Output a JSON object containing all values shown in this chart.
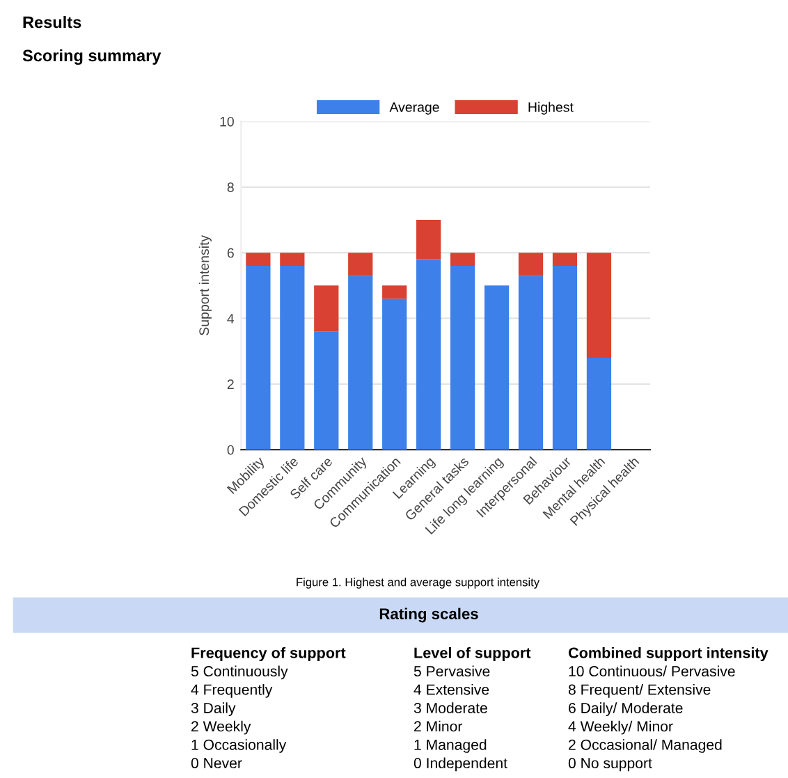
{
  "chart_data": {
    "type": "bar",
    "stacked": true,
    "title": "Results",
    "subtitle": "Scoring summary",
    "ylabel": "Support intensity",
    "categories": [
      "Mobility",
      "Domestic life",
      "Self care",
      "Community",
      "Communication",
      "Learning",
      "General tasks",
      "Life long learning",
      "Interpersonal",
      "Behaviour",
      "Mental health",
      "Physical health"
    ],
    "series": [
      {
        "name": "Average",
        "color": "#3d80e9",
        "values": [
          5.6,
          5.6,
          3.6,
          5.3,
          4.6,
          5.8,
          5.6,
          5.0,
          5.3,
          5.6,
          2.8,
          null
        ]
      },
      {
        "name": "Highest",
        "color": "#d94132",
        "values": [
          0.4,
          0.4,
          1.4,
          0.7,
          0.4,
          1.2,
          0.4,
          0,
          0.7,
          0.4,
          3.2,
          null
        ]
      }
    ],
    "ylim": [
      0,
      10
    ],
    "yticks": [
      0,
      2,
      4,
      6,
      8,
      10
    ],
    "grid": "y",
    "legend": "top",
    "annotations": [
      "Figure 1. Highest and average support intensity",
      "Rating scales",
      "Frequency of support",
      "5 Continuously",
      "4 Frequently",
      "3 Daily",
      "2 Weekly",
      "1 Occasionally",
      "0 Never",
      "Level of support",
      "5 Pervasive",
      "4 Extensive",
      "3 Moderate",
      "2 Minor",
      "1 Managed",
      "0 Independent",
      "Combined support intensity",
      "10 Continuous/ Pervasive",
      "8 Frequent/ Extensive",
      "6 Daily/ Moderate",
      "4 Weekly/ Minor",
      "2 Occasional/ Managed",
      "0 No support"
    ]
  }
}
